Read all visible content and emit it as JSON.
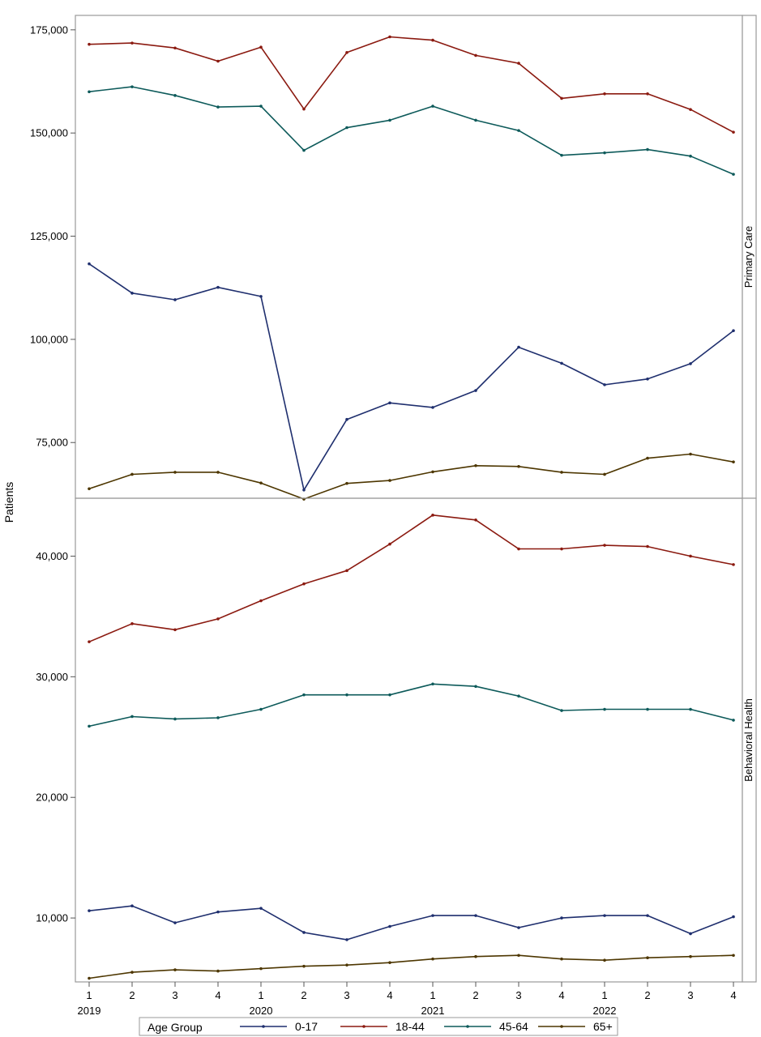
{
  "chart_data": {
    "type": "line",
    "ylabel": "Patients",
    "x_ticks": [
      "1",
      "2",
      "3",
      "4",
      "1",
      "2",
      "3",
      "4",
      "1",
      "2",
      "3",
      "4",
      "1",
      "2",
      "3",
      "4"
    ],
    "year_labels": [
      "2019",
      "2020",
      "2021",
      "2022"
    ],
    "legend": {
      "title": "Age Group",
      "position": "bottom"
    },
    "series_styles": [
      {
        "name": "0-17",
        "color": "#1f2f6e"
      },
      {
        "name": "18-44",
        "color": "#8b1a10"
      },
      {
        "name": "45-64",
        "color": "#0d5a5a"
      },
      {
        "name": "65+",
        "color": "#4d3600"
      }
    ],
    "panels": [
      {
        "label": "Primary Care",
        "ylim": [
          61500,
          178500
        ],
        "y_ticks": [
          75000,
          100000,
          125000,
          150000,
          175000
        ],
        "y_tick_labels": [
          "75,000",
          "100,000",
          "125,000",
          "150,000",
          "175,000"
        ],
        "series": [
          {
            "name": "0-17",
            "values": [
              118300,
              111200,
              109600,
              112600,
              110400,
              63500,
              80600,
              84600,
              83500,
              87600,
              98100,
              94200,
              89000,
              90400,
              94100,
              102100
            ]
          },
          {
            "name": "18-44",
            "values": [
              171500,
              171800,
              170600,
              167400,
              170800,
              155800,
              169500,
              173300,
              172500,
              168800,
              166900,
              158400,
              159500,
              159500,
              155700,
              150200
            ]
          },
          {
            "name": "45-64",
            "values": [
              160000,
              161200,
              159100,
              156300,
              156500,
              145800,
              151300,
              153100,
              156500,
              153100,
              150600,
              144600,
              145200,
              146000,
              144400,
              140000
            ]
          },
          {
            "name": "65+",
            "values": [
              63800,
              67300,
              67800,
              67800,
              65200,
              61300,
              65100,
              65800,
              67900,
              69400,
              69200,
              67800,
              67300,
              71200,
              72200,
              70300
            ]
          }
        ]
      },
      {
        "label": "Behavioral Health",
        "ylim": [
          4700,
          44800
        ],
        "y_ticks": [
          10000,
          20000,
          30000,
          40000
        ],
        "y_tick_labels": [
          "10,000",
          "20,000",
          "30,000",
          "40,000"
        ],
        "series": [
          {
            "name": "0-17",
            "values": [
              10600,
              11000,
              9600,
              10500,
              10800,
              8800,
              8200,
              9300,
              10200,
              10200,
              9200,
              10000,
              10200,
              10200,
              8700,
              10100
            ]
          },
          {
            "name": "18-44",
            "values": [
              32900,
              34400,
              33900,
              34800,
              36300,
              37700,
              38800,
              41000,
              43400,
              43000,
              40600,
              40600,
              40900,
              40800,
              40000,
              39300
            ]
          },
          {
            "name": "45-64",
            "values": [
              25900,
              26700,
              26500,
              26600,
              27300,
              28500,
              28500,
              28500,
              29400,
              29200,
              28400,
              27200,
              27300,
              27300,
              27300,
              26400
            ]
          },
          {
            "name": "65+",
            "values": [
              5000,
              5500,
              5700,
              5600,
              5800,
              6000,
              6100,
              6300,
              6600,
              6800,
              6900,
              6600,
              6500,
              6700,
              6800,
              6900
            ]
          }
        ]
      }
    ]
  }
}
